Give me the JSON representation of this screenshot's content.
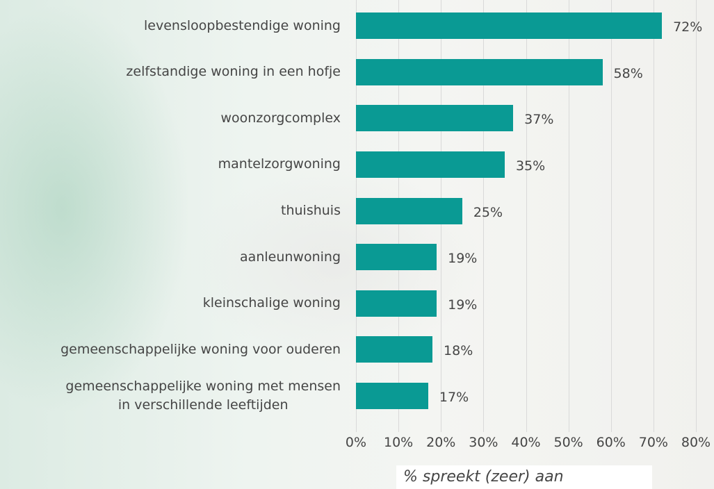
{
  "chart_data": {
    "type": "barh",
    "categories": [
      "levensloopbestendige woning",
      "zelfstandige woning in een hofje",
      "woonzorgcomplex",
      "mantelzorgwoning",
      "thuishuis",
      "aanleunwoning",
      "kleinschalige woning",
      "gemeenschappelijke woning voor ouderen",
      "gemeenschappelijke woning met mensen\nin verschillende leeftijden"
    ],
    "values": [
      72,
      58,
      37,
      35,
      25,
      19,
      19,
      18,
      17
    ],
    "value_labels": [
      "72%",
      "58%",
      "37%",
      "35%",
      "25%",
      "19%",
      "19%",
      "18%",
      "17%"
    ],
    "color": "#0a9a94",
    "xlim": [
      0,
      80
    ],
    "xticks": [
      {
        "value": 0,
        "label": "0%"
      },
      {
        "value": 10,
        "label": "10%"
      },
      {
        "value": 20,
        "label": "20%"
      },
      {
        "value": 30,
        "label": "30%"
      },
      {
        "value": 40,
        "label": "40%"
      },
      {
        "value": 50,
        "label": "50%"
      },
      {
        "value": 60,
        "label": "60%"
      },
      {
        "value": 70,
        "label": "70%"
      },
      {
        "value": 80,
        "label": "80%"
      }
    ],
    "xlabel": "% spreekt (zeer) aan",
    "grid": true
  }
}
